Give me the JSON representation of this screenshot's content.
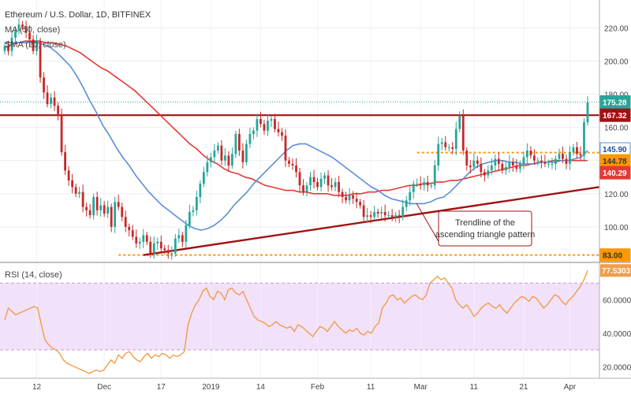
{
  "header": {
    "symbol_line": "Ethereum / U.S. Dollar, 1D, BITFINEX",
    "legend_ma50": "MA (50, close)",
    "legend_sma20": "SMA (20, close)",
    "rsi_label": "RSI (14, close)"
  },
  "annotation": {
    "text_line1": "Trendline of the",
    "text_line2": "ascending triangle pattern"
  },
  "colors": {
    "up": "#26a69a",
    "down": "#c62828",
    "ma50": "#e53935",
    "sma20": "#5b8fd6",
    "resistance": "#a11212",
    "support": "#ff9800",
    "trendline": "#a11212",
    "rsi_line": "#f39c4a",
    "rsi_band": "#f1e1fb",
    "rsi_bound": "#c39bd3",
    "price_last": "#26a69a"
  },
  "chart_data": [
    {
      "type": "candlestick",
      "title": "",
      "x_ticks": [
        "12",
        "Dec",
        "17",
        "2019",
        "14",
        "Feb",
        "11",
        "Mar",
        "11",
        "21",
        "Apr"
      ],
      "y_ticks": [
        100.0,
        120.0,
        140.0,
        160.0,
        180.0,
        200.0,
        220.0
      ],
      "ylim": [
        80,
        232
      ],
      "price_labels": {
        "last": "175.28",
        "resistance": "167.32",
        "sma20": "145.90",
        "support": "144.78",
        "ma50": "140.29",
        "low": "83.00"
      },
      "levels": {
        "resistance": 167.32,
        "support": 144.78,
        "low": 83.0
      },
      "trendline": {
        "from": [
          34,
          83
        ],
        "to": [
          149,
          124
        ]
      },
      "close": [
        209,
        206,
        214,
        218,
        222,
        221,
        217,
        213,
        206,
        212,
        190,
        181,
        174,
        178,
        173,
        168,
        145,
        134,
        128,
        124,
        120,
        121,
        112,
        110,
        107,
        118,
        110,
        113,
        108,
        112,
        100,
        115,
        112,
        106,
        100,
        98,
        94,
        90,
        91,
        95,
        91,
        84,
        90,
        91,
        87,
        86,
        84,
        84,
        93,
        95,
        91,
        101,
        109,
        110,
        118,
        126,
        133,
        139,
        142,
        146,
        149,
        140,
        143,
        137,
        144,
        156,
        146,
        139,
        150,
        156,
        158,
        165,
        162,
        158,
        164,
        165,
        159,
        157,
        155,
        140,
        138,
        137,
        133,
        125,
        121,
        125,
        130,
        127,
        124,
        129,
        131,
        125,
        124,
        127,
        121,
        118,
        116,
        119,
        117,
        115,
        113,
        106,
        107,
        106,
        109,
        108,
        109,
        107,
        107,
        106,
        107,
        106,
        112,
        116,
        121,
        126,
        126,
        125,
        127,
        125,
        125,
        137,
        150,
        151,
        148,
        148,
        147,
        159,
        167,
        146,
        137,
        136,
        140,
        138,
        133,
        131,
        134,
        137,
        141,
        138,
        134,
        136,
        139,
        137,
        135,
        138,
        142,
        146,
        143,
        140,
        140,
        139,
        138,
        138,
        138,
        141,
        144,
        141,
        138,
        145,
        148,
        144,
        143,
        163,
        175
      ],
      "series": [
        {
          "name": "MA (50, close)",
          "values": [
            208,
            210,
            211,
            212,
            212,
            212,
            211,
            211,
            210,
            209,
            207,
            205,
            202,
            199,
            196,
            194,
            191,
            188,
            185,
            182,
            178,
            174,
            170,
            166,
            162,
            158,
            154,
            150,
            147,
            143,
            140,
            138,
            135,
            133,
            132,
            130,
            129,
            127,
            125,
            124,
            123,
            122,
            122,
            121,
            121,
            120,
            120,
            120,
            119,
            119,
            119,
            120,
            120,
            121,
            121,
            122,
            122,
            123,
            124,
            125,
            125,
            126,
            126,
            127,
            127,
            128,
            128,
            129,
            130,
            131,
            132,
            133,
            134,
            135,
            136,
            137,
            137,
            138,
            139,
            139,
            140,
            140,
            140,
            140,
            140,
            140
          ]
        },
        {
          "name": "SMA (20, close)",
          "values": [
            211,
            211,
            211,
            211,
            211,
            211,
            210,
            208,
            205,
            201,
            197,
            191,
            184,
            176,
            169,
            161,
            155,
            148,
            142,
            137,
            131,
            126,
            121,
            117,
            113,
            110,
            107,
            104,
            101,
            99,
            98,
            99,
            101,
            104,
            108,
            113,
            117,
            121,
            126,
            130,
            134,
            138,
            142,
            146,
            149,
            150,
            150,
            148,
            146,
            144,
            142,
            139,
            136,
            133,
            130,
            127,
            124,
            122,
            119,
            117,
            116,
            115,
            114,
            114,
            114,
            115,
            117,
            118,
            121,
            125,
            129,
            133,
            136,
            138,
            139,
            140,
            140,
            139,
            139,
            138,
            138,
            138,
            139,
            139,
            139,
            140,
            140,
            141,
            142,
            146
          ]
        }
      ]
    },
    {
      "type": "line",
      "title": "",
      "name": "RSI (14, close)",
      "y_ticks": [
        20.0,
        40.0,
        60.0
      ],
      "ylim": [
        14,
        80
      ],
      "bounds": [
        30,
        70
      ],
      "last_label": "77.5303",
      "values": [
        48,
        55,
        53,
        51,
        52,
        53,
        54,
        55,
        56,
        55,
        45,
        36,
        33,
        31,
        30,
        28,
        24,
        22,
        21,
        20,
        19,
        18,
        17,
        16,
        17,
        18,
        17,
        18,
        21,
        24,
        22,
        27,
        25,
        28,
        29,
        26,
        24,
        23,
        26,
        28,
        25,
        27,
        26,
        28,
        27,
        25,
        27,
        26,
        27,
        29,
        45,
        52,
        57,
        60,
        65,
        67,
        62,
        60,
        65,
        64,
        60,
        66,
        67,
        64,
        63,
        65,
        60,
        55,
        50,
        48,
        47,
        46,
        44,
        45,
        47,
        45,
        44,
        43,
        44,
        41,
        45,
        44,
        42,
        40,
        38,
        41,
        44,
        43,
        41,
        44,
        47,
        44,
        42,
        40,
        42,
        41,
        43,
        40,
        39,
        41,
        40,
        44,
        46,
        55,
        58,
        62,
        63,
        60,
        61,
        58,
        60,
        62,
        63,
        61,
        60,
        63,
        70,
        72,
        74,
        72,
        73,
        70,
        67,
        60,
        57,
        55,
        57,
        54,
        50,
        52,
        55,
        57,
        58,
        56,
        55,
        57,
        54,
        52,
        55,
        58,
        60,
        62,
        61,
        59,
        62,
        61,
        58,
        55,
        57,
        60,
        63,
        62,
        59,
        57,
        60,
        62,
        65,
        68,
        72,
        77.53
      ]
    }
  ]
}
